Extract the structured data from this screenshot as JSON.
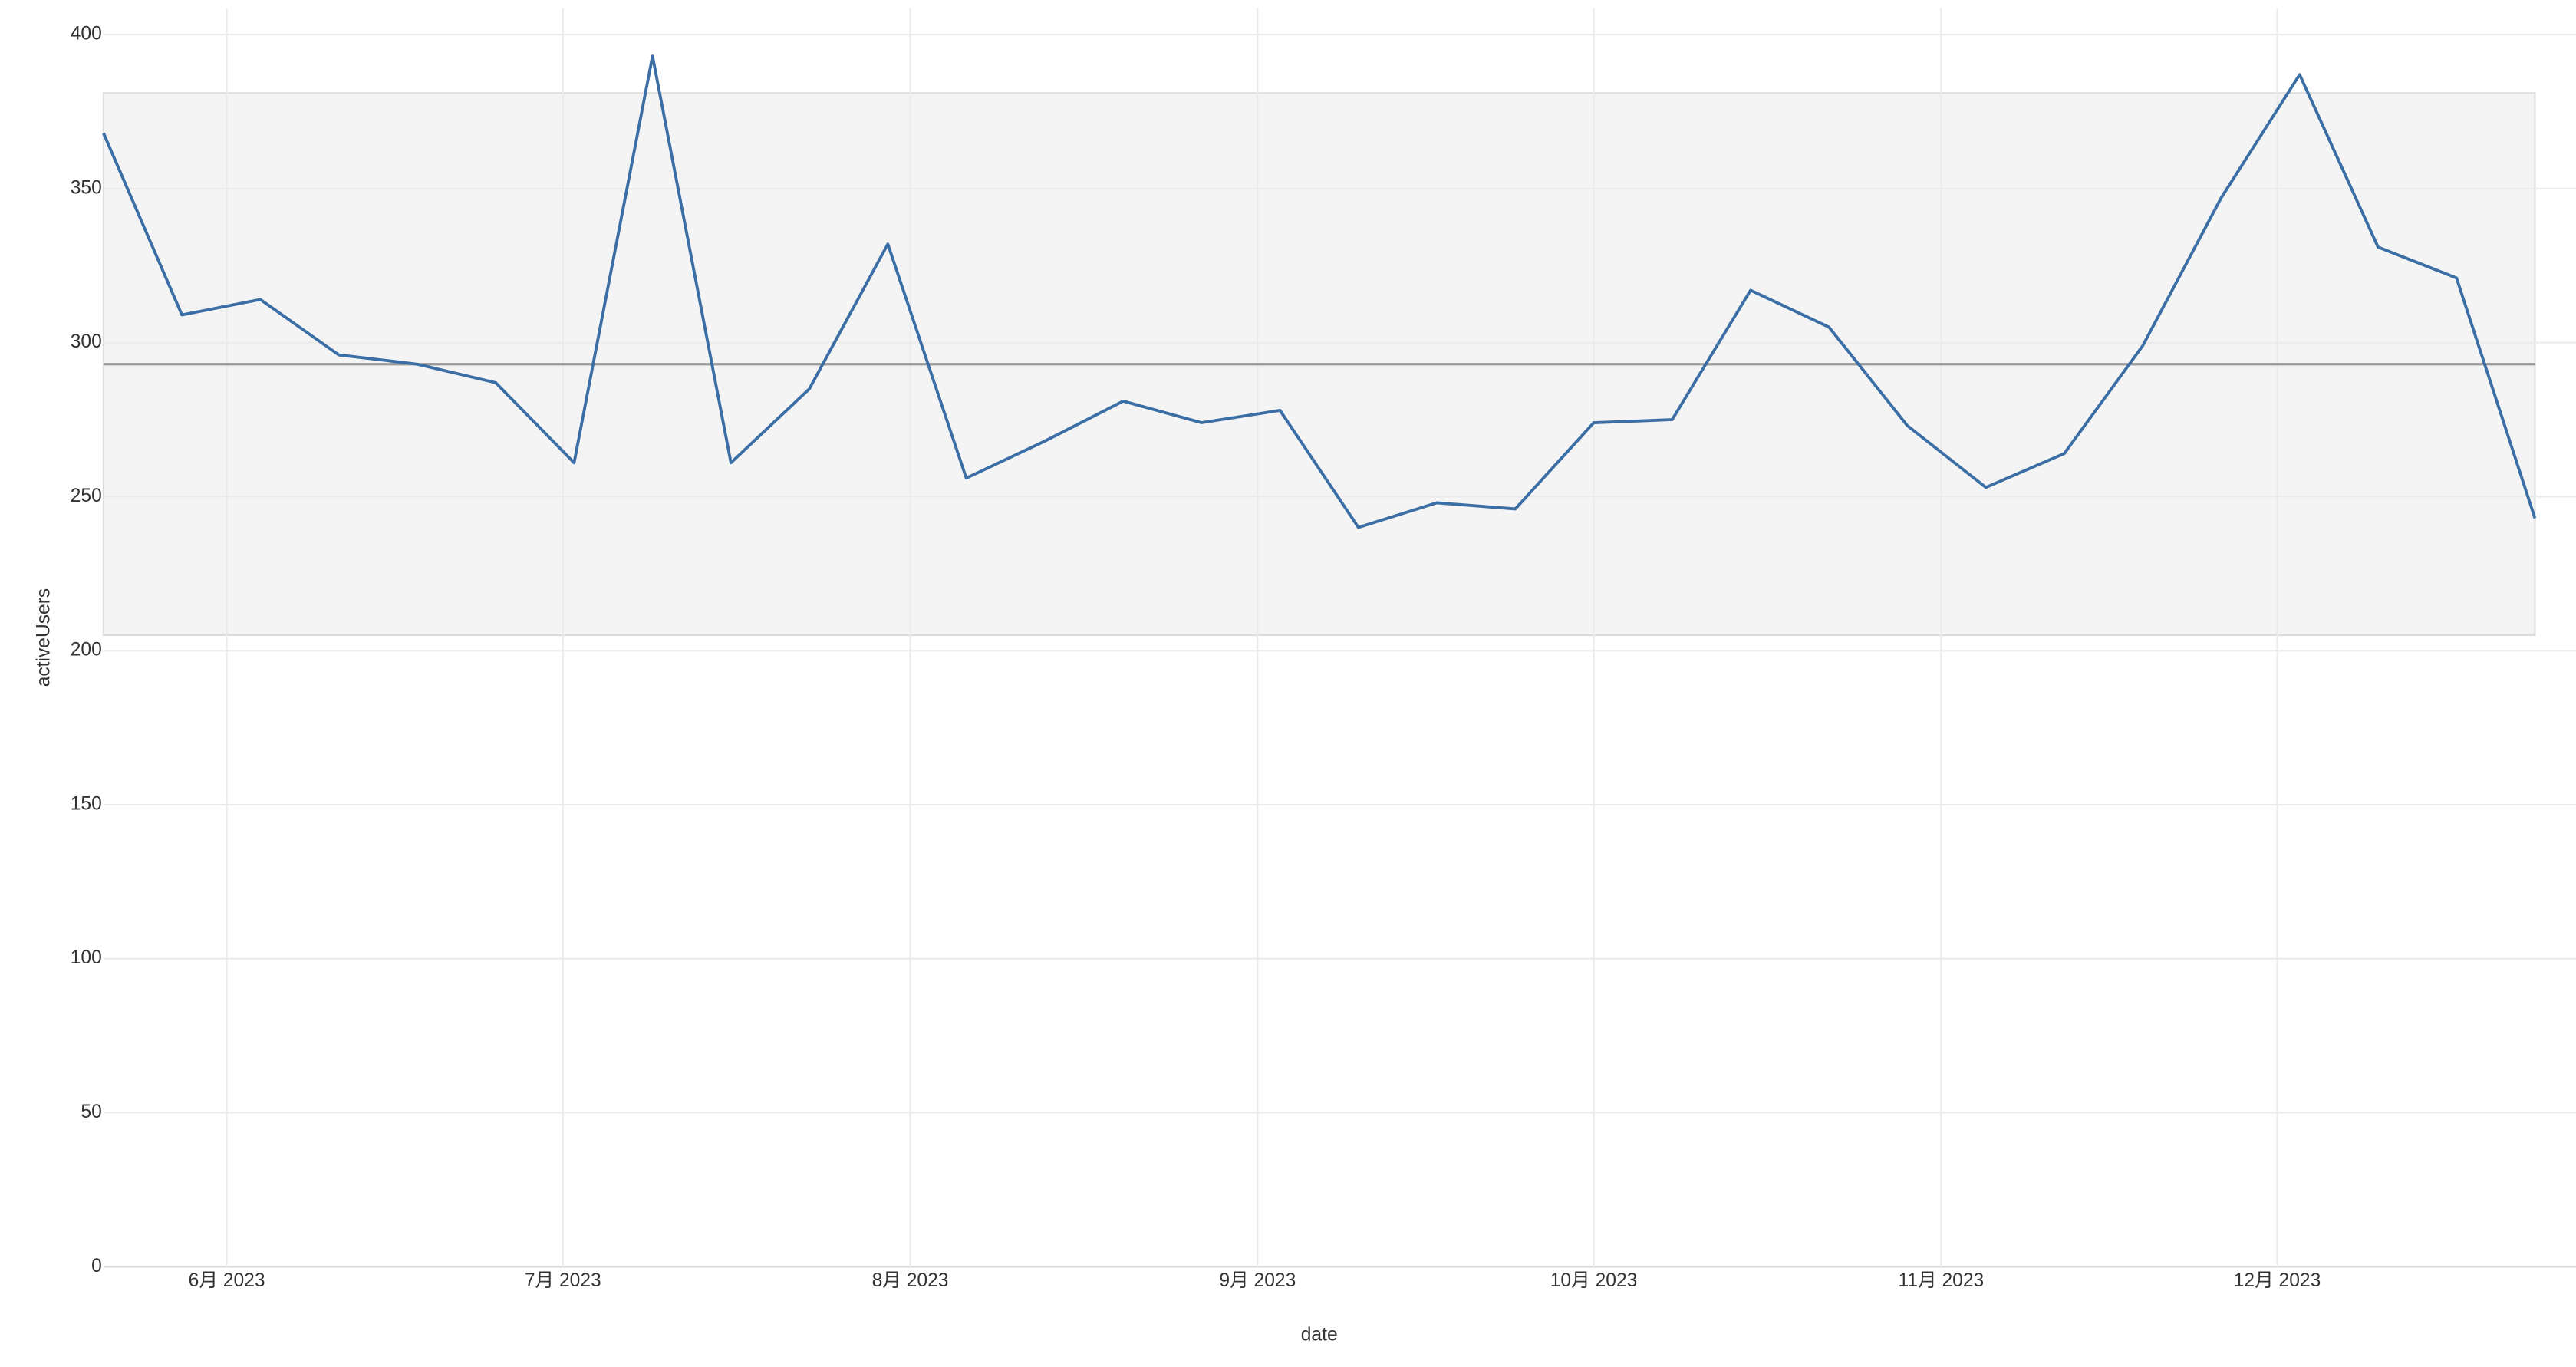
{
  "chart_data": {
    "type": "line",
    "xlabel": "date",
    "ylabel": "activeUsers",
    "x": [
      "2023-05-21",
      "2023-05-28",
      "2023-06-04",
      "2023-06-11",
      "2023-06-18",
      "2023-06-25",
      "2023-07-02",
      "2023-07-09",
      "2023-07-16",
      "2023-07-23",
      "2023-07-30",
      "2023-08-06",
      "2023-08-13",
      "2023-08-20",
      "2023-08-27",
      "2023-09-03",
      "2023-09-10",
      "2023-09-17",
      "2023-09-24",
      "2023-10-01",
      "2023-10-08",
      "2023-10-15",
      "2023-10-22",
      "2023-10-29",
      "2023-11-05",
      "2023-11-12",
      "2023-11-19",
      "2023-11-26",
      "2023-12-03",
      "2023-12-10",
      "2023-12-17",
      "2023-12-24"
    ],
    "values": [
      368,
      309,
      314,
      296,
      293,
      287,
      261,
      393,
      261,
      285,
      332,
      256,
      268,
      281,
      274,
      278,
      240,
      248,
      246,
      274,
      275,
      317,
      305,
      273,
      253,
      264,
      299,
      347,
      387,
      331,
      321,
      243
    ],
    "color": "#3a6ea5",
    "band": [
      205,
      381
    ],
    "band_color": "#f4f4f4",
    "mean_line": 293,
    "mean_color": "#999999",
    "xlim": [
      "2023-05-21",
      "2023-12-24"
    ],
    "xticks": [
      {
        "value": "2023-06-01",
        "label": "6月 2023"
      },
      {
        "value": "2023-07-01",
        "label": "7月 2023"
      },
      {
        "value": "2023-08-01",
        "label": "8月 2023"
      },
      {
        "value": "2023-09-01",
        "label": "9月 2023"
      },
      {
        "value": "2023-10-01",
        "label": "10月 2023"
      },
      {
        "value": "2023-11-01",
        "label": "11月 2023"
      },
      {
        "value": "2023-12-01",
        "label": "12月 2023"
      }
    ],
    "ylim": [
      0,
      400
    ],
    "yticks": [
      0,
      50,
      100,
      150,
      200,
      250,
      300,
      350,
      400
    ],
    "grid": true
  }
}
